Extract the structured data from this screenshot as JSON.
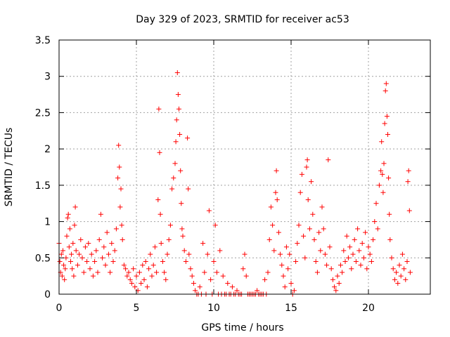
{
  "chart_data": {
    "type": "scatter",
    "title": "Day 329 of 2023, SRMTID for receiver ac53",
    "xlabel": "GPS time / hours",
    "ylabel": "SRMTID / TECUs",
    "xlim": [
      0,
      24
    ],
    "ylim": [
      0,
      3.5
    ],
    "x_ticks": [
      0,
      5,
      10,
      15,
      20
    ],
    "x_tick_labels": [
      "0",
      "5",
      "10",
      "15",
      "20"
    ],
    "y_ticks": [
      0,
      0.5,
      1,
      1.5,
      2,
      2.5,
      3,
      3.5
    ],
    "y_tick_labels": [
      "0",
      "0.5",
      "1",
      "1.5",
      "2",
      "2.5",
      "3",
      "3.5"
    ],
    "grid": true,
    "marker": "+",
    "series": [
      {
        "name": "SRMTID",
        "color": "#ff0000",
        "points": [
          [
            0.0,
            0.7
          ],
          [
            0.05,
            0.45
          ],
          [
            0.1,
            0.3
          ],
          [
            0.15,
            0.55
          ],
          [
            0.2,
            0.25
          ],
          [
            0.25,
            0.6
          ],
          [
            0.3,
            0.4
          ],
          [
            0.35,
            0.2
          ],
          [
            0.4,
            0.35
          ],
          [
            0.45,
            0.5
          ],
          [
            0.5,
            0.8
          ],
          [
            0.55,
            1.05
          ],
          [
            0.6,
            1.1
          ],
          [
            0.65,
            0.65
          ],
          [
            0.7,
            0.9
          ],
          [
            0.75,
            0.45
          ],
          [
            0.8,
            0.55
          ],
          [
            0.85,
            0.35
          ],
          [
            0.9,
            0.7
          ],
          [
            0.95,
            0.25
          ],
          [
            1.0,
            0.95
          ],
          [
            1.05,
            1.2
          ],
          [
            1.1,
            0.6
          ],
          [
            1.2,
            0.4
          ],
          [
            1.3,
            0.55
          ],
          [
            1.4,
            0.75
          ],
          [
            1.5,
            0.5
          ],
          [
            1.6,
            0.3
          ],
          [
            1.7,
            0.65
          ],
          [
            1.8,
            0.45
          ],
          [
            1.9,
            0.7
          ],
          [
            2.0,
            0.35
          ],
          [
            2.1,
            0.55
          ],
          [
            2.2,
            0.25
          ],
          [
            2.3,
            0.45
          ],
          [
            2.4,
            0.6
          ],
          [
            2.5,
            0.3
          ],
          [
            2.6,
            0.75
          ],
          [
            2.7,
            1.1
          ],
          [
            2.8,
            0.5
          ],
          [
            2.9,
            0.65
          ],
          [
            3.0,
            0.4
          ],
          [
            3.1,
            0.85
          ],
          [
            3.2,
            0.55
          ],
          [
            3.3,
            0.3
          ],
          [
            3.4,
            0.7
          ],
          [
            3.5,
            0.45
          ],
          [
            3.6,
            0.6
          ],
          [
            3.7,
            0.9
          ],
          [
            3.8,
            1.6
          ],
          [
            3.85,
            2.05
          ],
          [
            3.9,
            1.75
          ],
          [
            3.95,
            1.2
          ],
          [
            4.0,
            1.45
          ],
          [
            4.05,
            0.95
          ],
          [
            4.1,
            0.75
          ],
          [
            4.2,
            0.4
          ],
          [
            4.3,
            0.35
          ],
          [
            4.4,
            0.25
          ],
          [
            4.5,
            0.3
          ],
          [
            4.6,
            0.2
          ],
          [
            4.7,
            0.15
          ],
          [
            4.8,
            0.35
          ],
          [
            4.9,
            0.1
          ],
          [
            5.0,
            0.25
          ],
          [
            5.1,
            0.05
          ],
          [
            5.2,
            0.3
          ],
          [
            5.3,
            0.15
          ],
          [
            5.4,
            0.4
          ],
          [
            5.5,
            0.2
          ],
          [
            5.6,
            0.45
          ],
          [
            5.7,
            0.1
          ],
          [
            5.8,
            0.35
          ],
          [
            5.9,
            0.55
          ],
          [
            6.0,
            0.25
          ],
          [
            6.1,
            0.4
          ],
          [
            6.2,
            0.65
          ],
          [
            6.3,
            0.3
          ],
          [
            6.4,
            1.3
          ],
          [
            6.45,
            2.55
          ],
          [
            6.5,
            1.95
          ],
          [
            6.55,
            1.1
          ],
          [
            6.6,
            0.7
          ],
          [
            6.7,
            0.45
          ],
          [
            6.8,
            0.3
          ],
          [
            6.9,
            0.2
          ],
          [
            7.0,
            0.55
          ],
          [
            7.1,
            0.75
          ],
          [
            7.2,
            0.95
          ],
          [
            7.3,
            1.45
          ],
          [
            7.4,
            1.6
          ],
          [
            7.5,
            1.8
          ],
          [
            7.55,
            2.1
          ],
          [
            7.6,
            2.4
          ],
          [
            7.65,
            3.05
          ],
          [
            7.7,
            2.75
          ],
          [
            7.75,
            2.55
          ],
          [
            7.8,
            2.2
          ],
          [
            7.85,
            1.7
          ],
          [
            7.9,
            1.25
          ],
          [
            7.95,
            0.9
          ],
          [
            8.0,
            0.8
          ],
          [
            8.1,
            0.6
          ],
          [
            8.2,
            0.45
          ],
          [
            8.3,
            2.15
          ],
          [
            8.35,
            1.45
          ],
          [
            8.4,
            0.55
          ],
          [
            8.5,
            0.35
          ],
          [
            8.6,
            0.25
          ],
          [
            8.7,
            0.15
          ],
          [
            8.8,
            0.05
          ],
          [
            8.9,
            0.0
          ],
          [
            9.0,
            0.0
          ],
          [
            9.1,
            0.1
          ],
          [
            9.2,
            0.0
          ],
          [
            9.3,
            0.7
          ],
          [
            9.4,
            0.3
          ],
          [
            9.5,
            0.0
          ],
          [
            9.6,
            0.55
          ],
          [
            9.7,
            1.15
          ],
          [
            9.8,
            0.2
          ],
          [
            9.9,
            0.0
          ],
          [
            10.0,
            0.45
          ],
          [
            10.1,
            0.95
          ],
          [
            10.2,
            0.3
          ],
          [
            10.3,
            0.0
          ],
          [
            10.4,
            0.6
          ],
          [
            10.5,
            0.0
          ],
          [
            10.6,
            0.25
          ],
          [
            10.7,
            0.0
          ],
          [
            10.8,
            0.0
          ],
          [
            10.9,
            0.15
          ],
          [
            11.0,
            0.0
          ],
          [
            11.1,
            0.0
          ],
          [
            11.2,
            0.1
          ],
          [
            11.3,
            0.0
          ],
          [
            11.4,
            0.0
          ],
          [
            11.5,
            0.05
          ],
          [
            11.6,
            0.0
          ],
          [
            11.7,
            0.0
          ],
          [
            11.8,
            0.0
          ],
          [
            11.9,
            0.35
          ],
          [
            12.0,
            0.55
          ],
          [
            12.1,
            0.25
          ],
          [
            12.2,
            0.0
          ],
          [
            12.3,
            0.0
          ],
          [
            12.4,
            0.0
          ],
          [
            12.5,
            0.0
          ],
          [
            12.6,
            0.0
          ],
          [
            12.7,
            0.0
          ],
          [
            12.8,
            0.05
          ],
          [
            12.9,
            0.0
          ],
          [
            13.0,
            0.0
          ],
          [
            13.1,
            0.0
          ],
          [
            13.2,
            0.0
          ],
          [
            13.3,
            0.2
          ],
          [
            13.4,
            0.0
          ],
          [
            13.5,
            0.3
          ],
          [
            13.6,
            0.75
          ],
          [
            13.7,
            1.2
          ],
          [
            13.8,
            0.95
          ],
          [
            13.9,
            0.6
          ],
          [
            14.0,
            1.4
          ],
          [
            14.05,
            1.7
          ],
          [
            14.1,
            1.3
          ],
          [
            14.2,
            0.85
          ],
          [
            14.3,
            0.55
          ],
          [
            14.4,
            0.4
          ],
          [
            14.5,
            0.25
          ],
          [
            14.6,
            0.1
          ],
          [
            14.7,
            0.65
          ],
          [
            14.8,
            0.35
          ],
          [
            14.9,
            0.55
          ],
          [
            15.0,
            0.15
          ],
          [
            15.1,
            0.0
          ],
          [
            15.2,
            0.05
          ],
          [
            15.3,
            0.45
          ],
          [
            15.4,
            0.7
          ],
          [
            15.5,
            0.95
          ],
          [
            15.6,
            1.4
          ],
          [
            15.7,
            1.65
          ],
          [
            15.8,
            0.8
          ],
          [
            15.9,
            0.5
          ],
          [
            16.0,
            1.75
          ],
          [
            16.05,
            1.85
          ],
          [
            16.1,
            1.3
          ],
          [
            16.2,
            0.9
          ],
          [
            16.3,
            1.55
          ],
          [
            16.4,
            1.1
          ],
          [
            16.5,
            0.75
          ],
          [
            16.6,
            0.45
          ],
          [
            16.7,
            0.3
          ],
          [
            16.8,
            0.85
          ],
          [
            16.9,
            0.6
          ],
          [
            17.0,
            1.2
          ],
          [
            17.1,
            0.9
          ],
          [
            17.2,
            0.55
          ],
          [
            17.3,
            0.4
          ],
          [
            17.4,
            1.85
          ],
          [
            17.5,
            0.65
          ],
          [
            17.6,
            0.35
          ],
          [
            17.7,
            0.2
          ],
          [
            17.8,
            0.1
          ],
          [
            17.9,
            0.05
          ],
          [
            18.0,
            0.25
          ],
          [
            18.1,
            0.15
          ],
          [
            18.2,
            0.4
          ],
          [
            18.3,
            0.3
          ],
          [
            18.4,
            0.6
          ],
          [
            18.5,
            0.45
          ],
          [
            18.6,
            0.8
          ],
          [
            18.7,
            0.5
          ],
          [
            18.8,
            0.65
          ],
          [
            18.9,
            0.35
          ],
          [
            19.0,
            0.55
          ],
          [
            19.1,
            0.75
          ],
          [
            19.2,
            0.45
          ],
          [
            19.3,
            0.9
          ],
          [
            19.4,
            0.6
          ],
          [
            19.5,
            0.4
          ],
          [
            19.6,
            0.7
          ],
          [
            19.7,
            0.5
          ],
          [
            19.8,
            0.85
          ],
          [
            19.9,
            0.35
          ],
          [
            20.0,
            0.65
          ],
          [
            20.1,
            0.55
          ],
          [
            20.2,
            0.45
          ],
          [
            20.3,
            0.75
          ],
          [
            20.4,
            1.0
          ],
          [
            20.5,
            1.25
          ],
          [
            20.6,
            0.9
          ],
          [
            20.7,
            1.5
          ],
          [
            20.8,
            1.7
          ],
          [
            20.85,
            2.1
          ],
          [
            20.9,
            1.65
          ],
          [
            20.95,
            1.4
          ],
          [
            21.0,
            1.8
          ],
          [
            21.05,
            2.35
          ],
          [
            21.1,
            2.8
          ],
          [
            21.15,
            2.9
          ],
          [
            21.2,
            2.45
          ],
          [
            21.25,
            2.2
          ],
          [
            21.3,
            1.6
          ],
          [
            21.35,
            1.1
          ],
          [
            21.4,
            0.75
          ],
          [
            21.5,
            0.5
          ],
          [
            21.6,
            0.35
          ],
          [
            21.7,
            0.2
          ],
          [
            21.8,
            0.3
          ],
          [
            21.9,
            0.15
          ],
          [
            22.0,
            0.4
          ],
          [
            22.1,
            0.25
          ],
          [
            22.2,
            0.55
          ],
          [
            22.3,
            0.35
          ],
          [
            22.4,
            0.2
          ],
          [
            22.5,
            0.45
          ],
          [
            22.55,
            1.55
          ],
          [
            22.6,
            1.7
          ],
          [
            22.65,
            1.15
          ],
          [
            22.7,
            0.3
          ]
        ]
      }
    ]
  }
}
